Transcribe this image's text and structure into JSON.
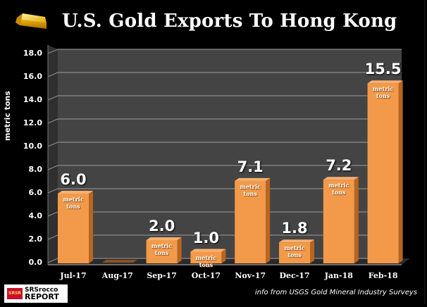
{
  "header": {
    "title": "U.S. Gold Exports To Hong Kong",
    "icon": "gold-bar-icon"
  },
  "colors": {
    "bar": "#f29a4a",
    "bar_side": "#b8651f",
    "wall": "#3d3d3d",
    "floor": "#2a2a2a",
    "background": "#000000",
    "grid": "#8a8a8a"
  },
  "footer": {
    "source": "info from USGS Gold Mineral Industry Surveys",
    "logo_line1": "SRSrocco",
    "logo_line2": "REPORT",
    "logo_mark": "SRSR"
  },
  "chart_data": {
    "type": "bar",
    "title": "U.S. Gold Exports To Hong Kong",
    "xlabel": "",
    "ylabel": "metric tons",
    "ylim": [
      0,
      18
    ],
    "yticks": [
      "0.0",
      "2.0",
      "4.0",
      "6.0",
      "8.0",
      "10.0",
      "12.0",
      "14.0",
      "16.0",
      "18.0"
    ],
    "grid": true,
    "categories": [
      "Jul-17",
      "Aug-17",
      "Sep-17",
      "Oct-17",
      "Nov-17",
      "Dec-17",
      "Jan-18",
      "Feb-18"
    ],
    "values": [
      6.0,
      0.0,
      2.0,
      1.0,
      7.1,
      1.8,
      7.2,
      15.5
    ],
    "data_labels": [
      "6.0",
      "",
      "2.0",
      "1.0",
      "7.1",
      "1.8",
      "7.2",
      "15.5"
    ],
    "bar_annotation": "metric tons",
    "source": "info from USGS Gold Mineral Industry Surveys"
  }
}
